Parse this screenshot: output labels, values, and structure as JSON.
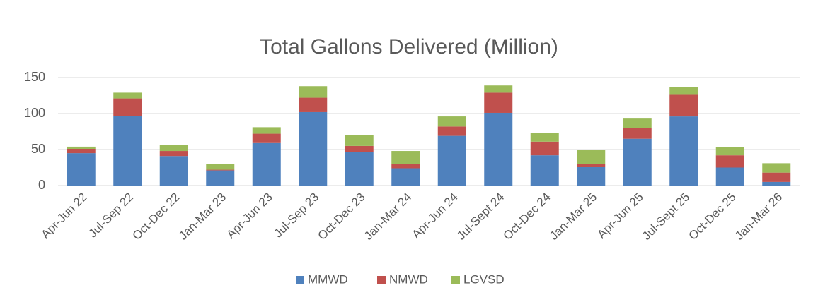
{
  "chart_data": {
    "type": "stacked_bar",
    "title": "Total Gallons Delivered (Million)",
    "categories": [
      "Apr-Jun 22",
      "Jul-Sep 22",
      "Oct-Dec 22",
      "Jan-Mar 23",
      "Apr-Jun 23",
      "Jul-Sep 23",
      "Oct-Dec 23",
      "Jan-Mar 24",
      "Apr-Jun 24",
      "Jul-Sept 24",
      "Oct-Dec 24",
      "Jan-Mar 25",
      "Apr-Jun 25",
      "Jul-Sept 25",
      "Oct-Dec 25",
      "Jan-Mar 26"
    ],
    "series": [
      {
        "name": "MMWD",
        "color": "#4f81bd",
        "values": [
          45,
          97,
          41,
          21,
          60,
          102,
          47,
          24,
          69,
          101,
          42,
          26,
          65,
          96,
          25,
          5
        ]
      },
      {
        "name": "NMWD",
        "color": "#c0504d",
        "values": [
          6,
          24,
          7,
          1,
          12,
          20,
          8,
          6,
          13,
          28,
          19,
          4,
          15,
          31,
          17,
          13
        ]
      },
      {
        "name": "LGVSD",
        "color": "#9bbb59",
        "values": [
          3,
          8,
          8,
          8,
          9,
          16,
          15,
          18,
          14,
          10,
          12,
          20,
          14,
          10,
          11,
          13
        ]
      }
    ],
    "ylim": [
      0,
      150
    ],
    "yticks": [
      0,
      50,
      100,
      150
    ],
    "grid": true,
    "legend": "bottom"
  }
}
